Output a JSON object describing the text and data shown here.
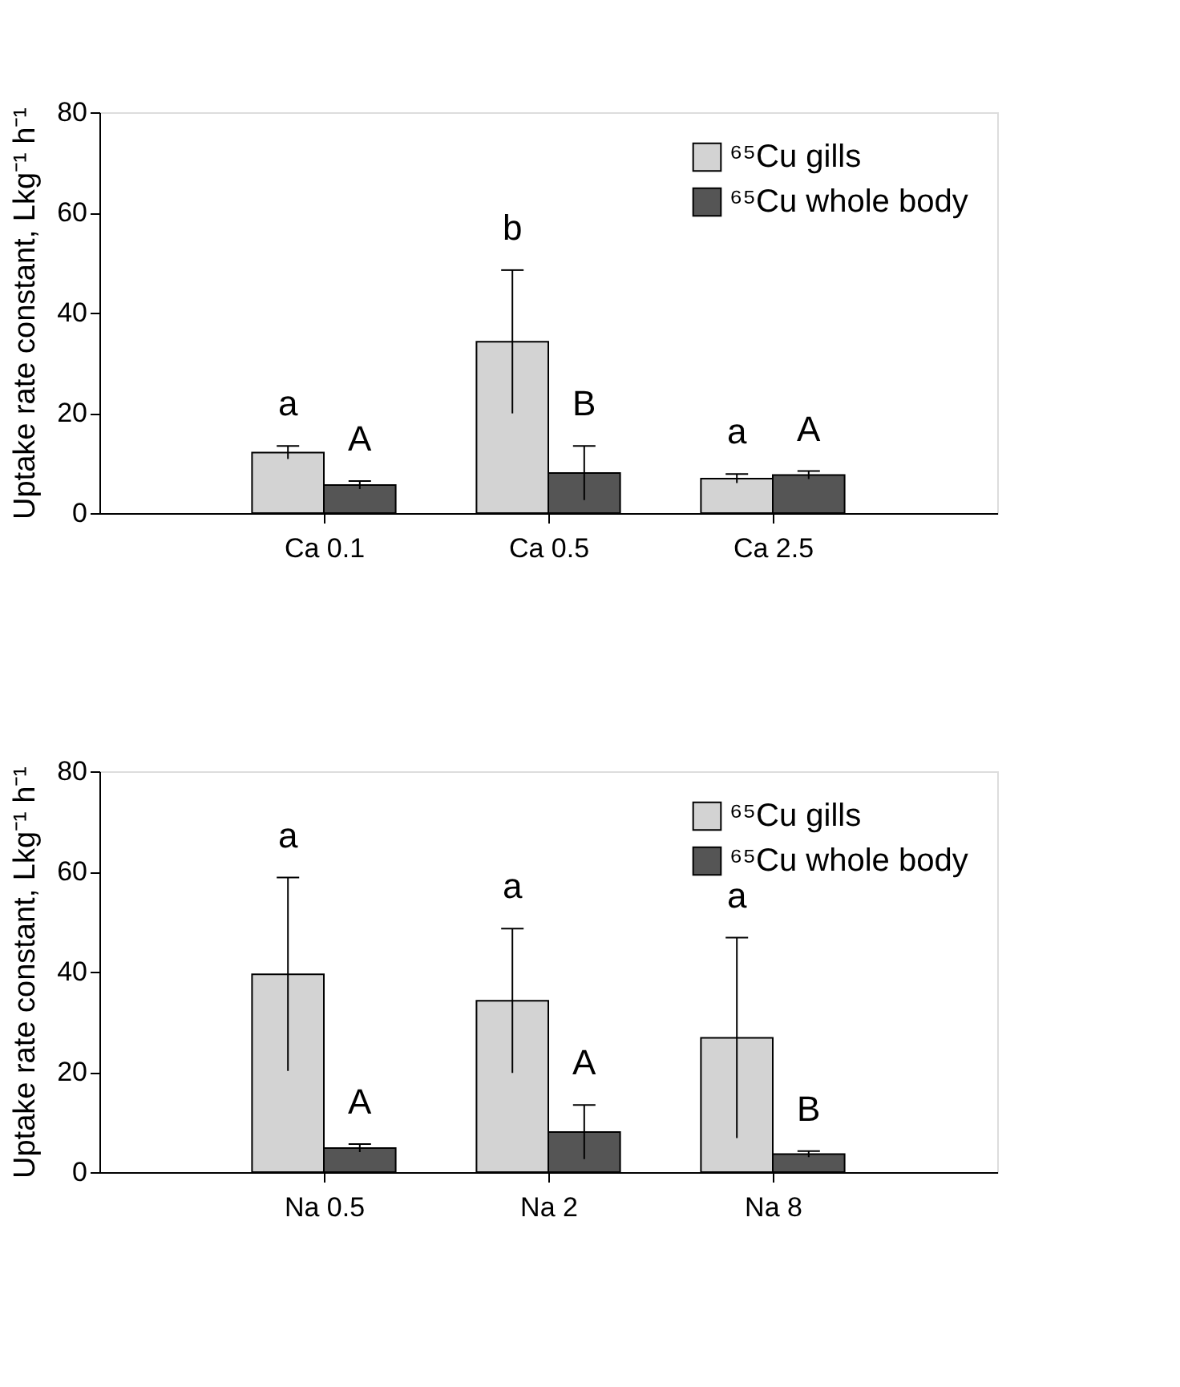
{
  "chart_data": [
    {
      "type": "bar",
      "ylabel": "Uptake rate constant, Lkg⁻¹ h⁻¹",
      "categories": [
        "Ca 0.1",
        "Ca 0.5",
        "Ca 2.5"
      ],
      "series": [
        {
          "name": "⁶⁵Cu gills",
          "color": "#d3d3d3",
          "values": [
            12.1,
            34.2,
            6.9
          ],
          "errors": [
            1.3,
            14.3,
            0.9
          ]
        },
        {
          "name": "⁶⁵Cu whole body",
          "color": "#555555",
          "values": [
            5.6,
            8.0,
            7.6
          ],
          "errors": [
            0.8,
            5.4,
            0.8
          ]
        }
      ],
      "annotations": [
        "a",
        "A",
        "b",
        "B",
        "a",
        "A"
      ],
      "ylim": [
        0,
        80
      ],
      "yticks": [
        0,
        20,
        40,
        60,
        80
      ],
      "grid": false,
      "legend": "top right"
    },
    {
      "type": "bar",
      "ylabel": "Uptake rate constant, Lkg⁻¹ h⁻¹",
      "categories": [
        "Na 0.5",
        "Na 2",
        "Na 8"
      ],
      "series": [
        {
          "name": "⁶⁵Cu gills",
          "color": "#d3d3d3",
          "values": [
            39.5,
            34.2,
            26.8
          ],
          "errors": [
            19.3,
            14.4,
            20.0
          ]
        },
        {
          "name": "⁶⁵Cu whole body",
          "color": "#555555",
          "values": [
            4.8,
            8.0,
            3.6
          ],
          "errors": [
            0.8,
            5.4,
            0.6
          ]
        }
      ],
      "annotations": [
        "a",
        "A",
        "a",
        "A",
        "a",
        "B"
      ],
      "ylim": [
        0,
        80
      ],
      "yticks": [
        0,
        20,
        40,
        60,
        80
      ],
      "grid": false,
      "legend": "top right"
    }
  ]
}
